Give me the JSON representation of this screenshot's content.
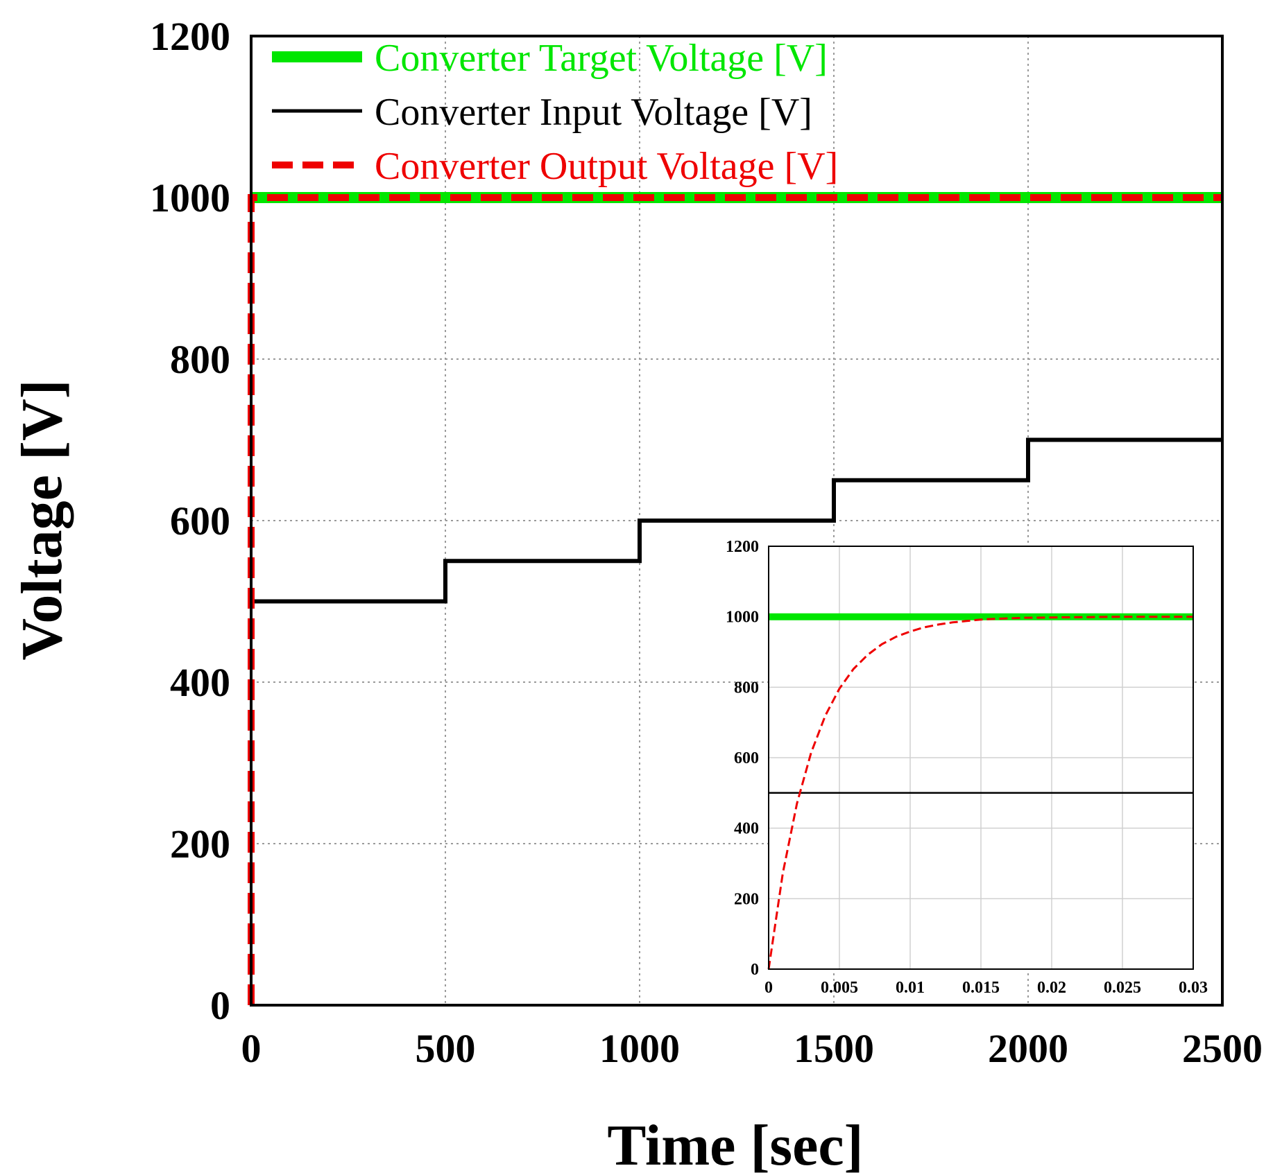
{
  "chart_data": [
    {
      "id": "main",
      "type": "line",
      "title": "",
      "xlabel": "Time [sec]",
      "ylabel": "Voltage [V]",
      "xlim": [
        0,
        2500
      ],
      "ylim": [
        0,
        1200
      ],
      "xticks": [
        0,
        500,
        1000,
        1500,
        2000,
        2500
      ],
      "xtick_labels": [
        "0",
        "500",
        "1000",
        "1500",
        "2000",
        "2500"
      ],
      "yticks": [
        0,
        200,
        400,
        600,
        800,
        1000,
        1200
      ],
      "ytick_labels": [
        "0",
        "200",
        "400",
        "600",
        "800",
        "1000",
        "1200"
      ],
      "grid": true,
      "legend_position": "top-left",
      "series": [
        {
          "name": "Converter Target Voltage [V]",
          "color": "#00e600",
          "style": "solid-thick",
          "x": [
            0,
            2500
          ],
          "y": [
            1000,
            1000
          ]
        },
        {
          "name": "Converter Input Voltage [V]",
          "color": "#000000",
          "style": "solid",
          "x": [
            0,
            500,
            500,
            1000,
            1000,
            1500,
            1500,
            2000,
            2000,
            2500
          ],
          "y": [
            500,
            500,
            550,
            550,
            600,
            600,
            650,
            650,
            700,
            700
          ]
        },
        {
          "name": "Converter Output Voltage [V]",
          "color": "#ee0000",
          "style": "dashed",
          "x": [
            0,
            0,
            2500
          ],
          "y": [
            0,
            1000,
            1000
          ]
        }
      ]
    },
    {
      "id": "inset",
      "type": "line",
      "title": "",
      "xlabel": "",
      "ylabel": "",
      "xlim": [
        0,
        0.03
      ],
      "ylim": [
        0,
        1200
      ],
      "xticks": [
        0,
        0.005,
        0.01,
        0.015,
        0.02,
        0.025,
        0.03
      ],
      "xtick_labels": [
        "0",
        "0.005",
        "0.01",
        "0.015",
        "0.02",
        "0.025",
        "0.03"
      ],
      "yticks": [
        0,
        200,
        400,
        600,
        800,
        1000,
        1200
      ],
      "ytick_labels": [
        "0",
        "200",
        "400",
        "600",
        "800",
        "1000",
        "1200"
      ],
      "grid": true,
      "series": [
        {
          "name": "Converter Target Voltage [V]",
          "color": "#00e600",
          "style": "solid-thick",
          "x": [
            0,
            0.03
          ],
          "y": [
            1000,
            1000
          ]
        },
        {
          "name": "Converter Input Voltage [V]",
          "color": "#000000",
          "style": "solid",
          "x": [
            0,
            0.03
          ],
          "y": [
            500,
            500
          ]
        },
        {
          "name": "Converter Output Voltage [V]",
          "color": "#ee0000",
          "style": "dashed",
          "x": [
            0,
            0.001,
            0.002,
            0.003,
            0.004,
            0.005,
            0.006,
            0.007,
            0.008,
            0.009,
            0.01,
            0.011,
            0.012,
            0.013,
            0.014,
            0.015,
            0.016,
            0.018,
            0.02,
            0.025,
            0.03
          ],
          "y": [
            0,
            272,
            470,
            614,
            719,
            796,
            852,
            892,
            922,
            943,
            958,
            970,
            978,
            984,
            988,
            992,
            994,
            997,
            998,
            1000,
            1000
          ]
        }
      ]
    }
  ]
}
